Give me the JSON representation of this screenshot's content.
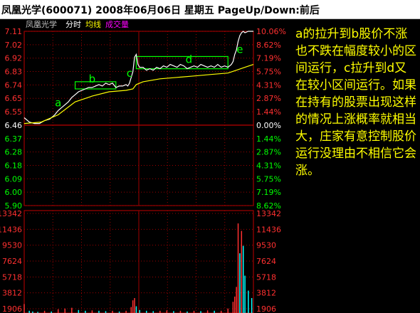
{
  "header": {
    "title": "凤凰光学(600071) 2008年06月06日 星期五 PageUp/Down:前后"
  },
  "legend": {
    "name": "凤凰光学",
    "items": [
      {
        "label": "分时",
        "color": "#ffffff"
      },
      {
        "label": "均线",
        "color": "#ffff00"
      },
      {
        "label": "成交量",
        "color": "#ff00ff"
      }
    ]
  },
  "note": {
    "text": "a的拉升到b股价不涨也不跌在幅度较小的区间运行，c拉升到d又在较小区间运行。如果在持有的股票出现这样的情况上涨概率就相当大，庄家有意控制股价运行没理由不相信它会涨。"
  },
  "annotations": [
    {
      "label": "a",
      "x": 20,
      "y": 6.59
    },
    {
      "label": "b",
      "x": 40,
      "y": 6.755
    },
    {
      "label": "c",
      "x": 62,
      "y": 6.795
    },
    {
      "label": "d",
      "x": 97,
      "y": 6.89
    },
    {
      "label": "e",
      "x": 127,
      "y": 6.96
    }
  ],
  "chart_data": {
    "type": "line",
    "title": "",
    "xlabel": "",
    "ylabel": "",
    "price_ticks": [
      "7.11",
      "7.02",
      "6.92",
      "6.83",
      "6.74",
      "6.65",
      "6.55",
      "6.46",
      "6.37",
      "6.28",
      "6.18",
      "6.09",
      "6.00",
      "5.90"
    ],
    "pct_ticks": [
      "10.06%",
      "8.62%",
      "7.19%",
      "5.75%",
      "4.31%",
      "2.87%",
      "1.44%",
      "0.00%",
      "1.44%",
      "2.87%",
      "4.31%",
      "5.75%",
      "7.19%",
      "8.62%"
    ],
    "volume_ticks": [
      "13342",
      "11436",
      "9530",
      "7624",
      "5718",
      "3812",
      "1906"
    ],
    "ylim": [
      5.9,
      7.11
    ],
    "volume_ylim": [
      0,
      13342
    ],
    "x_range": [
      0,
      135
    ],
    "series": [
      {
        "color": "#ffffff",
        "x": [
          0,
          3,
          6,
          9,
          12,
          15,
          18,
          20,
          22,
          24,
          26,
          28,
          30,
          32,
          34,
          36,
          38,
          40,
          42,
          44,
          46,
          48,
          50,
          52,
          54,
          56,
          58,
          60,
          61,
          62,
          63,
          64,
          65,
          66,
          67,
          68,
          70,
          72,
          74,
          76,
          78,
          80,
          82,
          84,
          86,
          88,
          90,
          92,
          94,
          96,
          98,
          100,
          102,
          104,
          106,
          108,
          110,
          112,
          114,
          116,
          118,
          120,
          122,
          123,
          124,
          125,
          126,
          127,
          128,
          129,
          130,
          132,
          134,
          135
        ],
        "values": [
          6.51,
          6.48,
          6.47,
          6.47,
          6.49,
          6.5,
          6.53,
          6.56,
          6.58,
          6.6,
          6.62,
          6.65,
          6.67,
          6.69,
          6.7,
          6.71,
          6.72,
          6.72,
          6.73,
          6.74,
          6.73,
          6.75,
          6.74,
          6.75,
          6.72,
          6.73,
          6.73,
          6.74,
          6.73,
          6.75,
          6.79,
          6.83,
          6.93,
          6.95,
          6.88,
          6.86,
          6.86,
          6.84,
          6.85,
          6.84,
          6.86,
          6.85,
          6.87,
          6.86,
          6.88,
          6.87,
          6.86,
          6.88,
          6.87,
          6.85,
          6.86,
          6.87,
          6.86,
          6.88,
          6.87,
          6.86,
          6.87,
          6.86,
          6.88,
          6.86,
          6.87,
          6.86,
          6.88,
          6.9,
          6.95,
          6.98,
          7.04,
          7.08,
          7.1,
          7.11,
          7.1,
          7.11,
          7.11,
          7.11
        ]
      },
      {
        "color": "#ffff00",
        "x": [
          0,
          10,
          20,
          30,
          40,
          50,
          60,
          64,
          66,
          70,
          80,
          90,
          100,
          110,
          120,
          125,
          130,
          135
        ],
        "values": [
          6.47,
          6.48,
          6.53,
          6.62,
          6.66,
          6.69,
          6.7,
          6.71,
          6.74,
          6.76,
          6.78,
          6.79,
          6.8,
          6.81,
          6.82,
          6.84,
          6.86,
          6.88
        ]
      }
    ],
    "highlight_boxes": [
      {
        "x0": 30,
        "x1": 54,
        "y0": 6.71,
        "y1": 6.76
      },
      {
        "x0": 66,
        "x1": 120,
        "y0": 6.85,
        "y1": 6.935
      }
    ],
    "volume": {
      "x": [
        0,
        3,
        5,
        8,
        12,
        16,
        20,
        24,
        28,
        32,
        36,
        40,
        44,
        48,
        52,
        56,
        60,
        63,
        64,
        65,
        66,
        68,
        72,
        76,
        80,
        84,
        88,
        92,
        96,
        100,
        104,
        108,
        112,
        116,
        120,
        123,
        124,
        125,
        126,
        127,
        128,
        129,
        130,
        132,
        134
      ],
      "values": [
        1200,
        300,
        200,
        150,
        300,
        200,
        500,
        600,
        700,
        400,
        300,
        350,
        300,
        250,
        300,
        200,
        300,
        800,
        1700,
        2000,
        900,
        400,
        300,
        250,
        300,
        350,
        250,
        300,
        200,
        300,
        250,
        350,
        300,
        300,
        600,
        1500,
        2200,
        3500,
        12000,
        8000,
        11000,
        9000,
        5000,
        3000,
        2000
      ]
    }
  }
}
